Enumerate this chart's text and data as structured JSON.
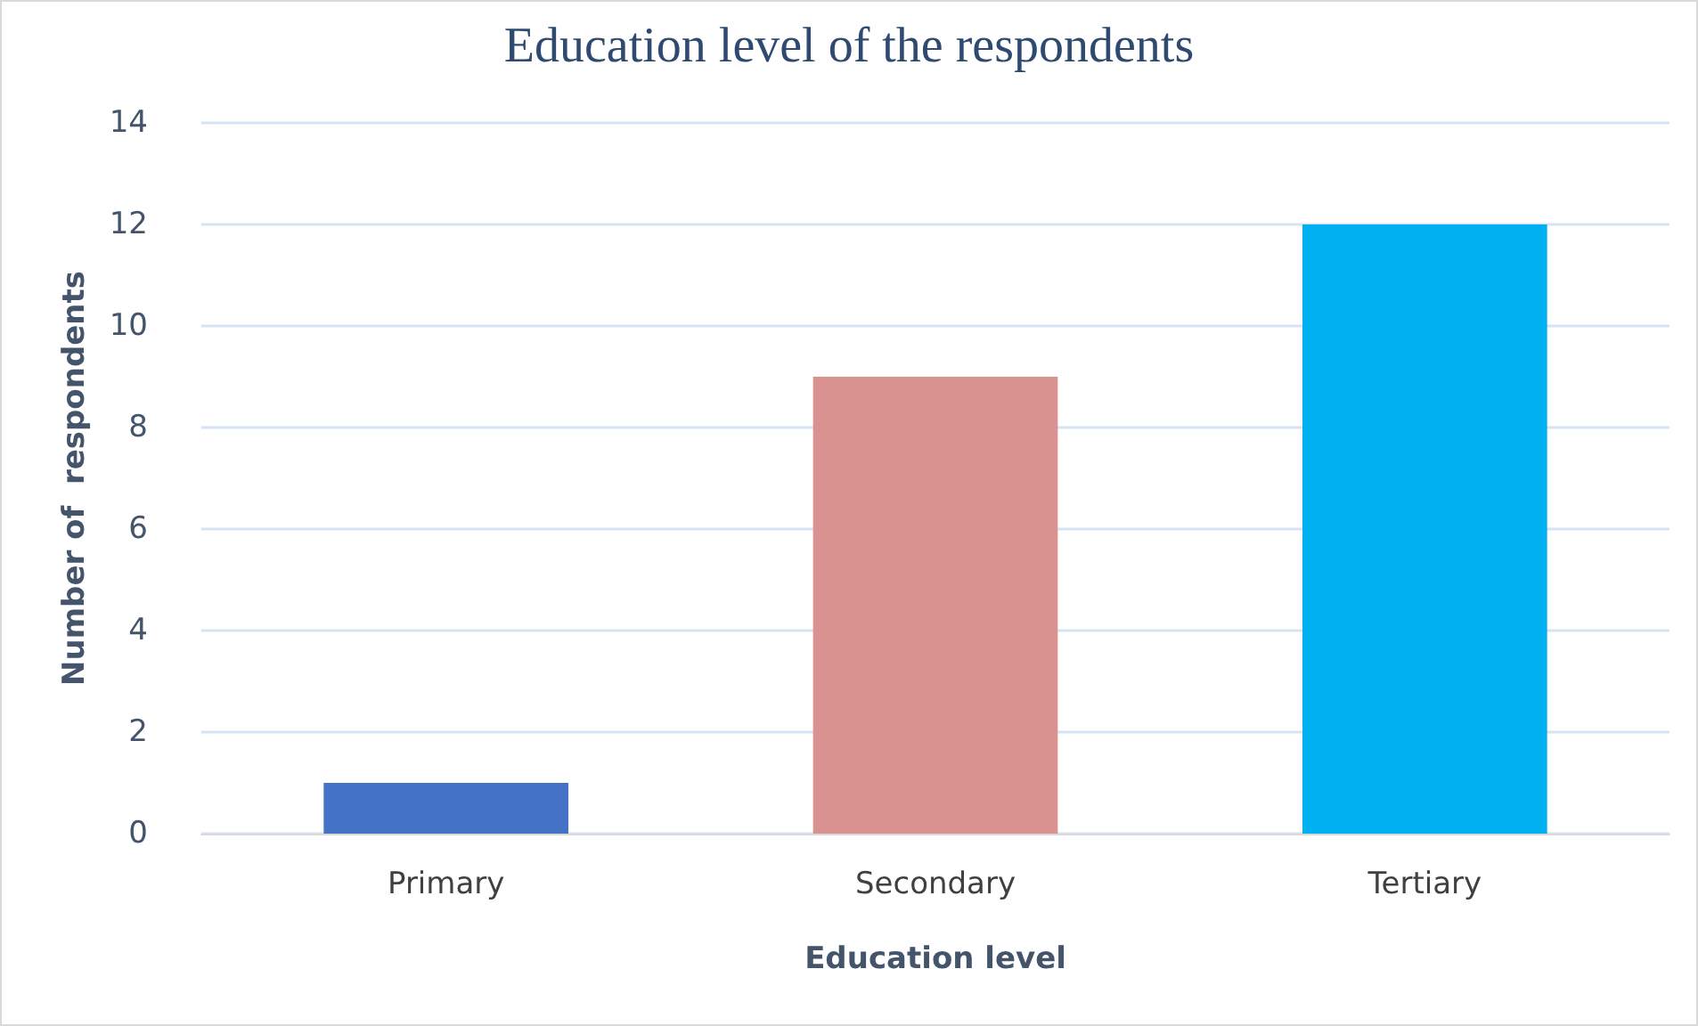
{
  "chart_data": {
    "type": "bar",
    "title": "Education level of the respondents",
    "xlabel": "Education level",
    "ylabel": "Number of  respondents",
    "categories": [
      "Primary",
      "Secondary",
      "Tertiary"
    ],
    "values": [
      1,
      9,
      12
    ],
    "colors": [
      "#4472c4",
      "#d9928f",
      "#00b0f0"
    ],
    "ylim": [
      0,
      14
    ],
    "yticks": [
      0,
      2,
      4,
      6,
      8,
      10,
      12,
      14
    ],
    "grid": "y"
  }
}
